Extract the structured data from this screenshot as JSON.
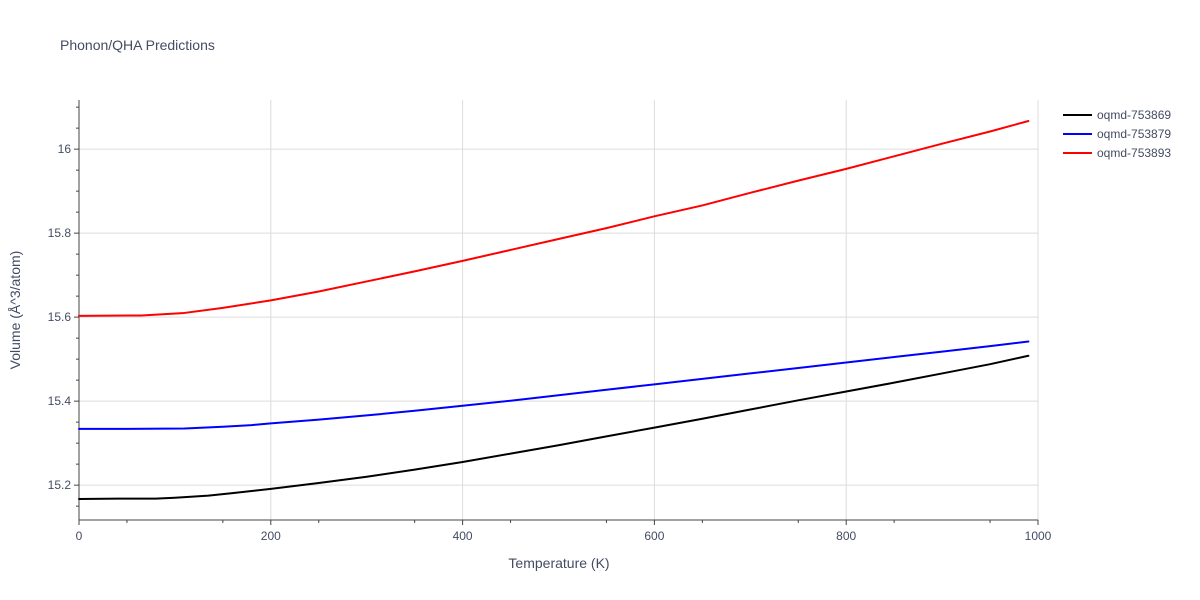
{
  "chart_data": {
    "type": "line",
    "title": "Phonon/QHA Predictions",
    "xlabel": "Temperature (K)",
    "ylabel": "Volume (Å^3/atom)",
    "xlim": [
      0,
      1000
    ],
    "ylim": [
      15.117,
      16.117
    ],
    "xticks": [
      0,
      200,
      400,
      600,
      800,
      1000
    ],
    "xtick_labels": [
      "0",
      "200",
      "400",
      "600",
      "800",
      "1000"
    ],
    "yticks": [
      15.2,
      15.4,
      15.6,
      15.8,
      16.0
    ],
    "ytick_labels": [
      "15.2",
      "15.4",
      "15.6",
      "15.8",
      "16"
    ],
    "grid": true,
    "legend_position": "top-right",
    "series": [
      {
        "name": "oqmd-753869",
        "color": "#000000",
        "x": [
          0,
          40,
          80,
          100,
          135,
          160,
          200,
          250,
          300,
          350,
          400,
          450,
          500,
          550,
          600,
          650,
          700,
          750,
          800,
          850,
          900,
          950,
          990
        ],
        "y": [
          15.167,
          15.168,
          15.168,
          15.17,
          15.175,
          15.181,
          15.191,
          15.205,
          15.22,
          15.237,
          15.255,
          15.275,
          15.295,
          15.316,
          15.337,
          15.358,
          15.38,
          15.402,
          15.423,
          15.444,
          15.466,
          15.488,
          15.508
        ]
      },
      {
        "name": "oqmd-753879",
        "color": "#0000ff",
        "x": [
          0,
          50,
          110,
          150,
          180,
          200,
          250,
          300,
          350,
          400,
          450,
          500,
          550,
          600,
          650,
          700,
          750,
          800,
          850,
          900,
          950,
          990
        ],
        "y": [
          15.334,
          15.334,
          15.335,
          15.339,
          15.343,
          15.347,
          15.356,
          15.366,
          15.377,
          15.389,
          15.401,
          15.414,
          15.427,
          15.44,
          15.453,
          15.466,
          15.479,
          15.492,
          15.505,
          15.518,
          15.531,
          15.542
        ]
      },
      {
        "name": "oqmd-753893",
        "color": "#ff0000",
        "x": [
          0,
          65,
          110,
          150,
          200,
          250,
          300,
          350,
          400,
          450,
          500,
          550,
          600,
          650,
          700,
          750,
          800,
          850,
          900,
          950,
          990
        ],
        "y": [
          15.603,
          15.604,
          15.61,
          15.622,
          15.64,
          15.661,
          15.685,
          15.709,
          15.734,
          15.76,
          15.786,
          15.812,
          15.84,
          15.866,
          15.896,
          15.925,
          15.953,
          15.983,
          16.013,
          16.042,
          16.067
        ]
      }
    ]
  }
}
